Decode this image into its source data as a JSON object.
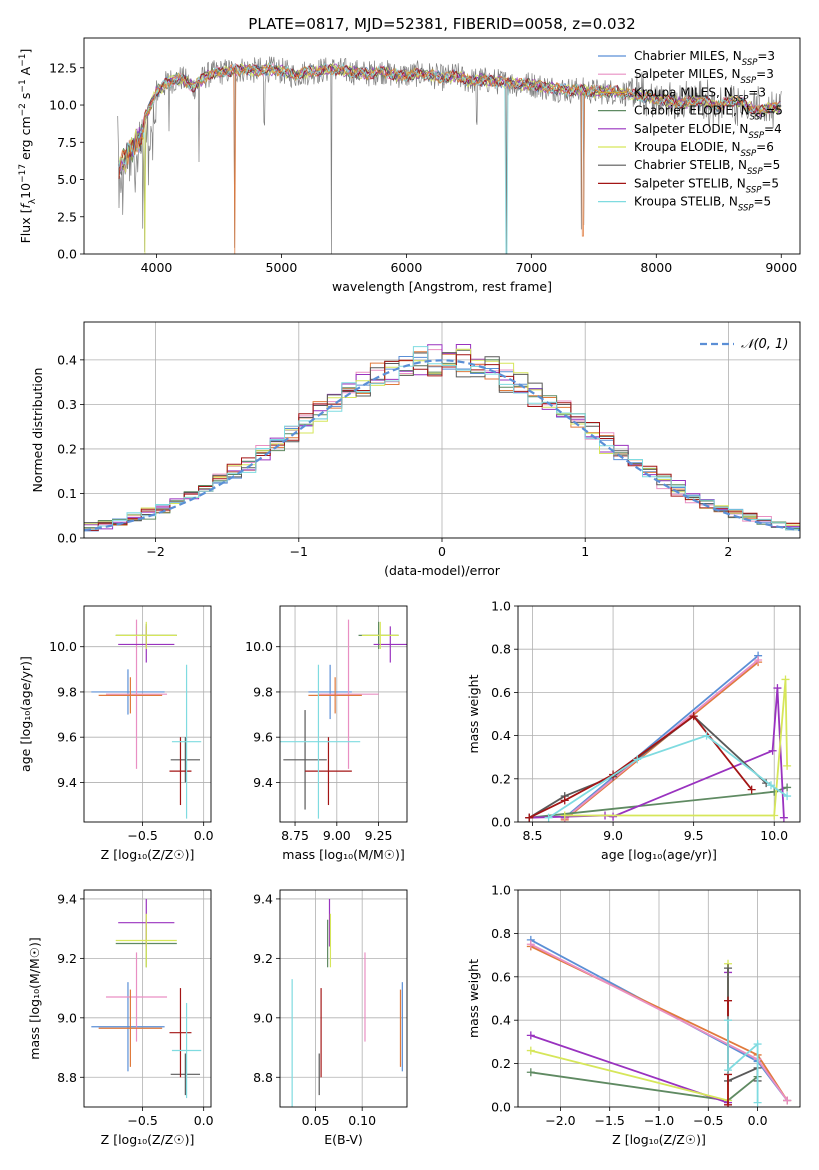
{
  "colors": {
    "Chabrier MILES": "#5b8fd6",
    "Salpeter MILES": "#e98fc3",
    "Kroupa MILES": "#c8a23a",
    "Chabrier ELODIE": "#5f8a62",
    "Salpeter ELODIE": "#9932bf",
    "Kroupa ELODIE": "#d6e65a",
    "Chabrier STELIB": "#595959",
    "Salpeter STELIB": "#a31515",
    "Kroupa STELIB": "#7fdbe0",
    "orange": "#e07a3c",
    "data": "#7f7f7f"
  },
  "chart_data": [
    {
      "id": "spectrum",
      "type": "line",
      "title": "PLATE=0817, MJD=52381, FIBERID=0058, z=0.032",
      "xlabel": "wavelength [Angstrom, rest frame]",
      "ylabel_parts": [
        "Flux [",
        "f",
        "λ",
        "10",
        "−17",
        " erg cm",
        "−2",
        " s",
        "−1",
        " A",
        "−1",
        "]"
      ],
      "xlim": [
        3420,
        9150
      ],
      "ylim": [
        0,
        14.5
      ],
      "xticks": [
        4000,
        5000,
        6000,
        7000,
        8000,
        9000
      ],
      "yticks": [
        0.0,
        2.5,
        5.0,
        7.5,
        10.0,
        12.5
      ],
      "legend_position": "upper right",
      "legend": [
        {
          "name": "Chabrier MILES",
          "label": "Chabrier MILES, N",
          "sub": "SSP",
          "suffix": "=3"
        },
        {
          "name": "Salpeter MILES",
          "label": "Salpeter MILES, N",
          "sub": "SSP",
          "suffix": "=3"
        },
        {
          "name": "Kroupa MILES",
          "label": "Kroupa MILES, N",
          "sub": "SSP",
          "suffix": "=3"
        },
        {
          "name": "Chabrier ELODIE",
          "label": "Chabrier ELODIE, N",
          "sub": "SSP",
          "suffix": "=5"
        },
        {
          "name": "Salpeter ELODIE",
          "label": "Salpeter ELODIE, N",
          "sub": "SSP",
          "suffix": "=4"
        },
        {
          "name": "Kroupa ELODIE",
          "label": "Kroupa ELODIE, N",
          "sub": "SSP",
          "suffix": "=6"
        },
        {
          "name": "Chabrier STELIB",
          "label": "Chabrier STELIB, N",
          "sub": "SSP",
          "suffix": "=5"
        },
        {
          "name": "Salpeter STELIB",
          "label": "Salpeter STELIB, N",
          "sub": "SSP",
          "suffix": "=5"
        },
        {
          "name": "Kroupa STELIB",
          "label": "Kroupa STELIB, N",
          "sub": "SSP",
          "suffix": "=5"
        }
      ],
      "continuum": [
        [
          3700,
          6.6
        ],
        [
          3800,
          7.8
        ],
        [
          3900,
          9.0
        ],
        [
          4000,
          10.9
        ],
        [
          4100,
          11.6
        ],
        [
          4200,
          11.8
        ],
        [
          4300,
          11.2
        ],
        [
          4400,
          12.0
        ],
        [
          4500,
          12.2
        ],
        [
          4600,
          12.3
        ],
        [
          4700,
          12.4
        ],
        [
          4800,
          12.3
        ],
        [
          4900,
          12.4
        ],
        [
          5000,
          12.3
        ],
        [
          5100,
          12.0
        ],
        [
          5200,
          12.2
        ],
        [
          5300,
          12.3
        ],
        [
          5400,
          12.4
        ],
        [
          5500,
          12.3
        ],
        [
          5600,
          12.2
        ],
        [
          5700,
          12.1
        ],
        [
          5800,
          12.3
        ],
        [
          5900,
          12.0
        ],
        [
          6000,
          12.0
        ],
        [
          6100,
          12.1
        ],
        [
          6200,
          12.0
        ],
        [
          6300,
          11.8
        ],
        [
          6400,
          12.0
        ],
        [
          6500,
          11.6
        ],
        [
          6600,
          11.7
        ],
        [
          6700,
          11.6
        ],
        [
          6800,
          11.5
        ],
        [
          6900,
          11.4
        ],
        [
          7000,
          11.4
        ],
        [
          7100,
          11.2
        ],
        [
          7200,
          11.1
        ],
        [
          7300,
          11.0
        ],
        [
          7400,
          11.0
        ],
        [
          7500,
          10.9
        ],
        [
          7600,
          10.9
        ],
        [
          7700,
          10.9
        ],
        [
          7800,
          10.7
        ],
        [
          7900,
          10.6
        ],
        [
          8000,
          10.4
        ],
        [
          8100,
          10.3
        ],
        [
          8200,
          10.1
        ],
        [
          8300,
          10.3
        ],
        [
          8400,
          10.2
        ],
        [
          8500,
          9.9
        ],
        [
          8600,
          10.3
        ],
        [
          8700,
          10.1
        ],
        [
          8800,
          9.6
        ],
        [
          8900,
          9.8
        ],
        [
          9000,
          9.9
        ]
      ],
      "dips": [
        [
          3700,
          3.0
        ],
        [
          3730,
          2.2
        ],
        [
          3830,
          4.0
        ],
        [
          3890,
          1.4
        ],
        [
          3905,
          0
        ],
        [
          3935,
          4.5
        ],
        [
          3970,
          6.0
        ],
        [
          4100,
          8.0
        ],
        [
          4340,
          6.0
        ],
        [
          4625,
          0
        ],
        [
          4862,
          8.5
        ],
        [
          5400,
          0
        ],
        [
          6563,
          8.5
        ],
        [
          6800,
          0
        ],
        [
          7400,
          1.2
        ],
        [
          7420,
          1.8
        ]
      ]
    },
    {
      "id": "residuals",
      "type": "step",
      "xlabel": "(data-model)/error",
      "ylabel": "Normed distribution",
      "xlim": [
        -2.5,
        2.5
      ],
      "ylim": [
        0,
        0.485
      ],
      "xticks": [
        -2,
        -1,
        0,
        1,
        2
      ],
      "xticklabels": [
        "−2",
        "−1",
        "0",
        "1",
        "2"
      ],
      "yticks": [
        0.0,
        0.1,
        0.2,
        0.3,
        0.4
      ],
      "bin_width": 0.1,
      "legend": "𝒩(0, 1)",
      "legend_position": "upper right"
    },
    {
      "id": "age_vs_Z",
      "type": "errorbar",
      "xlabel": "Z [log₁₀(Z/Z☉)]",
      "ylabel": "age  [log₁₀(age/yr)]",
      "xlim": [
        -0.98,
        0.06
      ],
      "ylim": [
        9.225,
        10.18
      ],
      "xticks": [
        -0.5,
        0.0
      ],
      "xticklabels": [
        "−0.5",
        "0.0"
      ],
      "yticks": [
        9.4,
        9.6,
        9.8,
        10.0
      ],
      "points": [
        {
          "series": "Chabrier MILES",
          "x": -0.62,
          "xerr": 0.3,
          "y": 9.8,
          "yerr": 0.1
        },
        {
          "series": "Salpeter MILES",
          "x": -0.55,
          "xerr": 0.25,
          "y": 9.79,
          "yerr": 0.33
        },
        {
          "series": "orange",
          "x": -0.6,
          "xerr": 0.26,
          "y": 9.785,
          "yerr": 0.08
        },
        {
          "series": "Chabrier ELODIE",
          "x": -0.47,
          "xerr": 0.25,
          "y": 10.05,
          "yerr": 0.05
        },
        {
          "series": "Salpeter ELODIE",
          "x": -0.47,
          "xerr": 0.23,
          "y": 10.01,
          "yerr": 0.08
        },
        {
          "series": "Kroupa ELODIE",
          "x": -0.47,
          "xerr": 0.25,
          "y": 10.05,
          "yerr": 0.06
        },
        {
          "series": "Chabrier STELIB",
          "x": -0.15,
          "xerr": 0.12,
          "y": 9.5,
          "yerr": 0.1
        },
        {
          "series": "Salpeter STELIB",
          "x": -0.19,
          "xerr": 0.09,
          "y": 9.45,
          "yerr": 0.15
        },
        {
          "series": "Kroupa STELIB",
          "x": -0.14,
          "xerr": 0.12,
          "y": 9.58,
          "yerr": 0.34
        }
      ]
    },
    {
      "id": "age_vs_mass",
      "type": "errorbar",
      "xlabel": "mass [log₁₀(M/M☉)]",
      "xlim": [
        8.66,
        9.42
      ],
      "ylim": [
        9.225,
        10.18
      ],
      "xticks": [
        8.75,
        9.0,
        9.25
      ],
      "xticklabels": [
        "8.75",
        "9.00",
        "9.25"
      ],
      "yticks": [
        9.4,
        9.6,
        9.8,
        10.0
      ],
      "points": [
        {
          "series": "Chabrier MILES",
          "x": 8.96,
          "xerr": 0.13,
          "y": 9.8,
          "yerr": 0.12
        },
        {
          "series": "Salpeter MILES",
          "x": 9.07,
          "xerr": 0.18,
          "y": 9.79,
          "yerr": 0.33
        },
        {
          "series": "orange",
          "x": 8.99,
          "xerr": 0.16,
          "y": 9.785,
          "yerr": 0.08
        },
        {
          "series": "Chabrier ELODIE",
          "x": 9.25,
          "xerr": 0.12,
          "y": 10.05,
          "yerr": 0.06
        },
        {
          "series": "Salpeter ELODIE",
          "x": 9.32,
          "xerr": 0.1,
          "y": 10.01,
          "yerr": 0.08
        },
        {
          "series": "Kroupa ELODIE",
          "x": 9.26,
          "xerr": 0.11,
          "y": 10.05,
          "yerr": 0.06
        },
        {
          "series": "Chabrier STELIB",
          "x": 8.81,
          "xerr": 0.13,
          "y": 9.5,
          "yerr": 0.22
        },
        {
          "series": "Salpeter STELIB",
          "x": 8.95,
          "xerr": 0.14,
          "y": 9.45,
          "yerr": 0.15
        },
        {
          "series": "Kroupa STELIB",
          "x": 8.89,
          "xerr": 0.25,
          "y": 9.58,
          "yerr": 0.34
        }
      ]
    },
    {
      "id": "weight_vs_age",
      "type": "line",
      "xlabel": "age  [log₁₀(age/yr)]",
      "ylabel": "mass weight",
      "xlim": [
        8.41,
        10.16
      ],
      "ylim": [
        0,
        1.0
      ],
      "xticks": [
        8.5,
        9.0,
        9.5,
        10.0
      ],
      "xticklabels": [
        "8.5",
        "9.0",
        "9.5",
        "10.0"
      ],
      "yticks": [
        0.0,
        0.2,
        0.4,
        0.6,
        0.8,
        1.0
      ],
      "series": [
        {
          "name": "Chabrier MILES",
          "x": [
            8.7,
            9.9
          ],
          "y": [
            0.02,
            0.77
          ]
        },
        {
          "name": "orange",
          "x": [
            8.7,
            9.9
          ],
          "y": [
            0.01,
            0.74
          ]
        },
        {
          "name": "Salpeter MILES",
          "x": [
            8.7,
            9.9
          ],
          "y": [
            0.015,
            0.75
          ]
        },
        {
          "name": "Chabrier ELODIE",
          "x": [
            8.48,
            10.0,
            10.08
          ],
          "y": [
            0.02,
            0.14,
            0.16
          ]
        },
        {
          "name": "Salpeter ELODIE",
          "x": [
            8.48,
            8.95,
            9.0,
            9.99,
            10.02,
            10.06
          ],
          "y": [
            0.02,
            0.03,
            0.025,
            0.33,
            0.62,
            0.02
          ]
        },
        {
          "name": "Kroupa ELODIE",
          "x": [
            8.7,
            10.0,
            10.07,
            10.08
          ],
          "y": [
            0.03,
            0.03,
            0.66,
            0.26
          ]
        },
        {
          "name": "Chabrier STELIB",
          "x": [
            8.48,
            8.7,
            9.0,
            9.5,
            9.95
          ],
          "y": [
            0.02,
            0.12,
            0.21,
            0.49,
            0.18
          ]
        },
        {
          "name": "Salpeter STELIB",
          "x": [
            8.48,
            8.7,
            9.0,
            9.5,
            9.86
          ],
          "y": [
            0.02,
            0.1,
            0.22,
            0.49,
            0.15
          ]
        },
        {
          "name": "Kroupa STELIB",
          "x": [
            8.6,
            9.15,
            9.58,
            9.98,
            10.08
          ],
          "y": [
            0.02,
            0.29,
            0.4,
            0.17,
            0.12
          ]
        }
      ]
    },
    {
      "id": "mass_vs_Z",
      "type": "errorbar",
      "xlabel": "Z [log₁₀(Z/Z☉)]",
      "ylabel": "mass [log₁₀(M/M☉)]",
      "xlim": [
        -0.98,
        0.06
      ],
      "ylim": [
        8.7,
        9.43
      ],
      "xticks": [
        -0.5,
        0.0
      ],
      "xticklabels": [
        "−0.5",
        "0.0"
      ],
      "yticks": [
        8.8,
        9.0,
        9.2,
        9.4
      ],
      "points": [
        {
          "series": "Chabrier MILES",
          "x": -0.62,
          "xerr": 0.3,
          "y": 8.97,
          "yerr": 0.15
        },
        {
          "series": "Salpeter MILES",
          "x": -0.55,
          "xerr": 0.25,
          "y": 9.07,
          "yerr": 0.15
        },
        {
          "series": "orange",
          "x": -0.6,
          "xerr": 0.26,
          "y": 8.965,
          "yerr": 0.13
        },
        {
          "series": "Chabrier ELODIE",
          "x": -0.47,
          "xerr": 0.25,
          "y": 9.25,
          "yerr": 0.08
        },
        {
          "series": "Salpeter ELODIE",
          "x": -0.47,
          "xerr": 0.23,
          "y": 9.32,
          "yerr": 0.08
        },
        {
          "series": "Kroupa ELODIE",
          "x": -0.47,
          "xerr": 0.25,
          "y": 9.26,
          "yerr": 0.09
        },
        {
          "series": "Chabrier STELIB",
          "x": -0.15,
          "xerr": 0.12,
          "y": 8.81,
          "yerr": 0.07
        },
        {
          "series": "Salpeter STELIB",
          "x": -0.19,
          "xerr": 0.09,
          "y": 8.95,
          "yerr": 0.15
        },
        {
          "series": "Kroupa STELIB",
          "x": -0.14,
          "xerr": 0.12,
          "y": 8.89,
          "yerr": 0.16
        }
      ]
    },
    {
      "id": "mass_vs_ebv",
      "type": "errorbar",
      "xlabel": "E(B-V)",
      "xlim": [
        0.012,
        0.148
      ],
      "ylim": [
        8.7,
        9.43
      ],
      "xticks": [
        0.05,
        0.1
      ],
      "xticklabels": [
        "0.05",
        "0.10"
      ],
      "yticks": [
        8.8,
        9.0,
        9.2,
        9.4
      ],
      "points": [
        {
          "series": "Chabrier MILES",
          "x": 0.143,
          "xerr": 0,
          "y": 8.97,
          "yerr": 0.15
        },
        {
          "series": "Salpeter MILES",
          "x": 0.103,
          "xerr": 0,
          "y": 9.07,
          "yerr": 0.15
        },
        {
          "series": "orange",
          "x": 0.141,
          "xerr": 0,
          "y": 8.965,
          "yerr": 0.13
        },
        {
          "series": "Chabrier ELODIE",
          "x": 0.063,
          "xerr": 0,
          "y": 9.25,
          "yerr": 0.08
        },
        {
          "series": "Salpeter ELODIE",
          "x": 0.065,
          "xerr": 0,
          "y": 9.32,
          "yerr": 0.08
        },
        {
          "series": "Kroupa ELODIE",
          "x": 0.066,
          "xerr": 0,
          "y": 9.26,
          "yerr": 0.09
        },
        {
          "series": "Chabrier STELIB",
          "x": 0.054,
          "xerr": 0,
          "y": 8.81,
          "yerr": 0.07
        },
        {
          "series": "Salpeter STELIB",
          "x": 0.056,
          "xerr": 0,
          "y": 8.95,
          "yerr": 0.15
        },
        {
          "series": "Kroupa STELIB",
          "x": 0.025,
          "xerr": 0,
          "y": 8.89,
          "yerr": 0.24
        }
      ]
    },
    {
      "id": "weight_vs_Z",
      "type": "line",
      "xlabel": "Z [log₁₀(Z/Z☉)]",
      "ylabel": "mass weight",
      "xlim": [
        -2.43,
        0.43
      ],
      "ylim": [
        0,
        1.0
      ],
      "xticks": [
        -2.0,
        -1.5,
        -1.0,
        -0.5,
        0.0
      ],
      "xticklabels": [
        "−2.0",
        "−1.5",
        "−1.0",
        "−0.5",
        "0.0"
      ],
      "yticks": [
        0.0,
        0.2,
        0.4,
        0.6,
        0.8,
        1.0
      ],
      "series": [
        {
          "name": "Chabrier MILES",
          "x": [
            -2.3,
            0.0,
            0.3
          ],
          "y": [
            0.77,
            0.21,
            0.03
          ]
        },
        {
          "name": "orange",
          "x": [
            -2.3,
            0.0,
            0.3
          ],
          "y": [
            0.74,
            0.24,
            0.03
          ]
        },
        {
          "name": "Salpeter MILES",
          "x": [
            -2.3,
            0.0,
            0.3
          ],
          "y": [
            0.75,
            0.22,
            0.03
          ]
        },
        {
          "name": "Chabrier ELODIE",
          "x": [
            -2.3,
            -0.3,
            0.0
          ],
          "y": [
            0.16,
            0.03,
            0.14
          ]
        },
        {
          "name": "Salpeter ELODIE",
          "x": [
            -2.3,
            -0.3,
            -0.3
          ],
          "y": [
            0.33,
            0.02,
            0.62
          ]
        },
        {
          "name": "Kroupa ELODIE",
          "x": [
            -2.3,
            -0.3,
            -0.3
          ],
          "y": [
            0.26,
            0.03,
            0.66
          ]
        },
        {
          "name": "Chabrier STELIB",
          "x": [
            -0.3,
            -0.3,
            0.0,
            0.0
          ],
          "y": [
            0.64,
            0.12,
            0.18,
            0.12
          ]
        },
        {
          "name": "Salpeter STELIB",
          "x": [
            -0.3,
            -0.3,
            -0.3
          ],
          "y": [
            0.49,
            0.01,
            0.15
          ]
        },
        {
          "name": "Kroupa STELIB",
          "x": [
            -0.3,
            -0.3,
            0.0,
            0.0
          ],
          "y": [
            0.4,
            0.17,
            0.29,
            0.02
          ]
        }
      ]
    }
  ]
}
